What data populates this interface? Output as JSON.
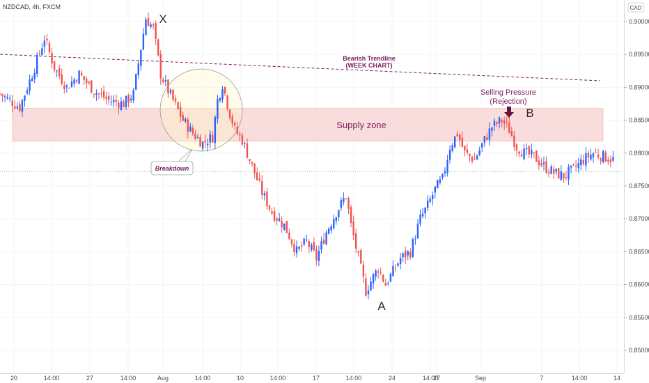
{
  "symbol_title": "NZDCAD, 4h, FXCM",
  "currency_badge": "CAD",
  "colors": {
    "up": "#2962ff",
    "down": "#ef5350",
    "zone_fill": "#f9dcdc",
    "zone_stroke": "#f0b090",
    "annotation": "#7a1f5c",
    "grid": "#f0f3f7"
  },
  "chart_data": {
    "type": "candlestick",
    "title": "NZDCAD, 4h, FXCM",
    "y_axis": {
      "ticks": [
        "0.90000",
        "0.89500",
        "0.89000",
        "0.88500",
        "0.88000",
        "0.87500",
        "0.87000",
        "0.86500",
        "0.86000",
        "0.85500",
        "0.85000"
      ],
      "range": [
        0.8465,
        0.905
      ]
    },
    "x_axis": {
      "ticks": [
        "20",
        "14:00",
        "27",
        "14:00",
        "Aug",
        "14:00",
        "10",
        "14:00",
        "17",
        "14:00",
        "24",
        "14:00",
        "27",
        "Sep",
        "7",
        "14:00",
        "14"
      ]
    },
    "close_path": [
      [
        0,
        0.889
      ],
      [
        8,
        0.887
      ],
      [
        14,
        0.893
      ],
      [
        18,
        0.8975
      ],
      [
        22,
        0.893
      ],
      [
        27,
        0.89
      ],
      [
        32,
        0.892
      ],
      [
        38,
        0.8895
      ],
      [
        44,
        0.888
      ],
      [
        50,
        0.8875
      ],
      [
        54,
        0.889
      ],
      [
        57,
        0.896
      ],
      [
        59,
        0.9005
      ],
      [
        62,
        0.899
      ],
      [
        65,
        0.892
      ],
      [
        68,
        0.8895
      ],
      [
        70,
        0.888
      ],
      [
        74,
        0.885
      ],
      [
        78,
        0.883
      ],
      [
        82,
        0.8815
      ],
      [
        86,
        0.8825
      ],
      [
        88,
        0.888
      ],
      [
        90,
        0.8905
      ],
      [
        93,
        0.886
      ],
      [
        95,
        0.8835
      ],
      [
        98,
        0.882
      ],
      [
        102,
        0.878
      ],
      [
        106,
        0.874
      ],
      [
        110,
        0.871
      ],
      [
        115,
        0.869
      ],
      [
        120,
        0.865
      ],
      [
        124,
        0.8665
      ],
      [
        128,
        0.864
      ],
      [
        132,
        0.868
      ],
      [
        136,
        0.871
      ],
      [
        140,
        0.8735
      ],
      [
        142,
        0.869
      ],
      [
        145,
        0.864
      ],
      [
        148,
        0.859
      ],
      [
        150,
        0.8605
      ],
      [
        153,
        0.8625
      ],
      [
        156,
        0.86
      ],
      [
        159,
        0.862
      ],
      [
        162,
        0.864
      ],
      [
        166,
        0.865
      ],
      [
        170,
        0.87
      ],
      [
        173,
        0.872
      ],
      [
        176,
        0.8745
      ],
      [
        179,
        0.876
      ],
      [
        182,
        0.881
      ],
      [
        185,
        0.883
      ],
      [
        188,
        0.88
      ],
      [
        192,
        0.879
      ],
      [
        196,
        0.882
      ],
      [
        199,
        0.884
      ],
      [
        203,
        0.885
      ],
      [
        206,
        0.8835
      ],
      [
        209,
        0.881
      ],
      [
        212,
        0.88
      ],
      [
        216,
        0.8795
      ],
      [
        220,
        0.878
      ],
      [
        224,
        0.877
      ],
      [
        228,
        0.8765
      ],
      [
        232,
        0.8775
      ],
      [
        236,
        0.879
      ],
      [
        240,
        0.88
      ],
      [
        244,
        0.8795
      ],
      [
        248,
        0.879
      ]
    ],
    "current_price": 0.8772,
    "supply_zone": [
      0.8818,
      0.8868
    ],
    "trendline": {
      "label": "Bearish Trendline",
      "sublabel": "(WEEK CHART)"
    },
    "annotations": {
      "x_point": "X",
      "a_point": "A",
      "b_point": "B",
      "supply_zone_label": "Supply zone",
      "selling_pressure": "Selling Pressure",
      "rejection": "(Rejection)",
      "breakdown": "Breakdown"
    }
  }
}
